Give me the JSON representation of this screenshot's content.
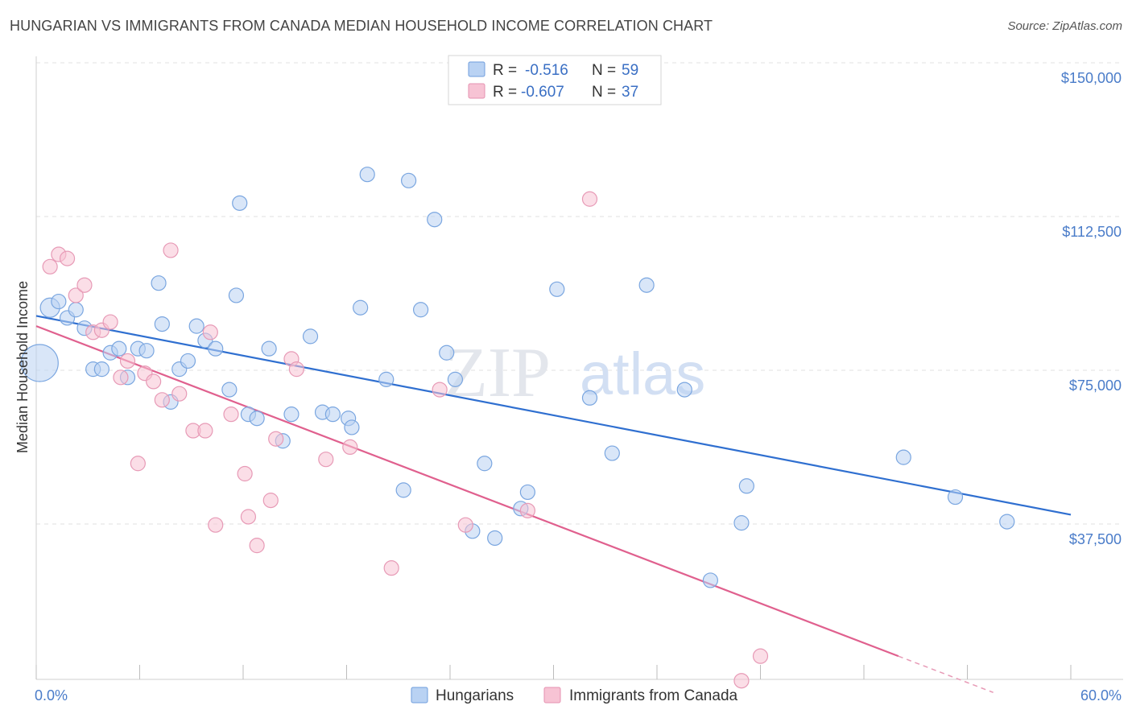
{
  "title": "HUNGARIAN VS IMMIGRANTS FROM CANADA MEDIAN HOUSEHOLD INCOME CORRELATION CHART",
  "source": "Source: ZipAtlas.com",
  "watermark": {
    "zip": "ZIP",
    "atlas": "atlas"
  },
  "colors": {
    "blue": "#4a86d8",
    "blue_fill": "#b9d2f3",
    "pink": "#e0608e",
    "pink_fill": "#f7c3d4",
    "grid": "#dddddd",
    "axis_text": "#4a7cc9"
  },
  "legend_box": {
    "rows": [
      {
        "r_label": "R =",
        "r_value": "-0.516",
        "n_label": "N =",
        "n_value": "59"
      },
      {
        "r_label": "R =",
        "r_value": "-0.607",
        "n_label": "N =",
        "n_value": "37"
      }
    ]
  },
  "chart_data": {
    "type": "scatter",
    "xlabel": "",
    "ylabel": "Median Household Income",
    "x_tick_labels": [
      "0.0%",
      "60.0%"
    ],
    "y_tick_labels": [
      "$150,000",
      "$112,500",
      "$75,000",
      "$37,500"
    ],
    "y_ticks": [
      150000,
      112500,
      75000,
      37500
    ],
    "xlim": [
      0,
      60
    ],
    "ylim": [
      0,
      155000
    ],
    "grid": true,
    "legend_position": "top-center",
    "series": [
      {
        "name": "Hungarians",
        "color": "#4a86d8",
        "trend": {
          "x": [
            0,
            60
          ],
          "y": [
            92000,
            43500
          ]
        },
        "points": [
          [
            0.2,
            80500,
            "big"
          ],
          [
            0.8,
            94000,
            "med"
          ],
          [
            1.3,
            95500
          ],
          [
            1.8,
            91500
          ],
          [
            2.3,
            93500
          ],
          [
            2.8,
            89000
          ],
          [
            3.3,
            79000
          ],
          [
            3.8,
            79000
          ],
          [
            4.3,
            83000
          ],
          [
            4.8,
            84000
          ],
          [
            5.3,
            77000
          ],
          [
            5.9,
            84000
          ],
          [
            6.4,
            83500
          ],
          [
            7.1,
            100000
          ],
          [
            7.3,
            90000
          ],
          [
            7.8,
            71000
          ],
          [
            8.3,
            79000
          ],
          [
            8.8,
            81000
          ],
          [
            9.3,
            89500
          ],
          [
            9.8,
            86000
          ],
          [
            10.4,
            84000
          ],
          [
            11.2,
            74000
          ],
          [
            11.6,
            97000
          ],
          [
            11.8,
            119500
          ],
          [
            12.3,
            68000
          ],
          [
            12.8,
            67000
          ],
          [
            13.5,
            84000
          ],
          [
            14.3,
            61500
          ],
          [
            14.8,
            68000
          ],
          [
            15.9,
            87000
          ],
          [
            16.6,
            68500
          ],
          [
            17.2,
            68000
          ],
          [
            18.1,
            67000
          ],
          [
            18.3,
            64800
          ],
          [
            18.8,
            94000
          ],
          [
            19.2,
            126500
          ],
          [
            20.3,
            76500
          ],
          [
            21.3,
            49500
          ],
          [
            21.6,
            125000
          ],
          [
            22.3,
            93500
          ],
          [
            23.1,
            115500
          ],
          [
            23.8,
            83000
          ],
          [
            24.3,
            76500
          ],
          [
            25.3,
            39500
          ],
          [
            26.0,
            56000
          ],
          [
            26.6,
            37800
          ],
          [
            28.1,
            45000
          ],
          [
            28.5,
            49000
          ],
          [
            30.2,
            98500
          ],
          [
            32.1,
            72000
          ],
          [
            33.4,
            58500
          ],
          [
            35.4,
            99500
          ],
          [
            37.6,
            74000
          ],
          [
            39.1,
            27500
          ],
          [
            40.9,
            41500
          ],
          [
            41.2,
            50500
          ],
          [
            50.3,
            57500
          ],
          [
            53.3,
            47800
          ],
          [
            56.3,
            41800
          ]
        ]
      },
      {
        "name": "Immigrants from Canada",
        "color": "#e0608e",
        "trend": {
          "x": [
            0,
            50
          ],
          "y": [
            89500,
            9000
          ]
        },
        "points": [
          [
            0.8,
            104000
          ],
          [
            1.3,
            107000
          ],
          [
            1.8,
            106000
          ],
          [
            2.3,
            97000
          ],
          [
            2.8,
            99500
          ],
          [
            3.3,
            88000
          ],
          [
            3.8,
            88500
          ],
          [
            4.3,
            90500
          ],
          [
            4.9,
            77000
          ],
          [
            5.3,
            81000
          ],
          [
            5.9,
            56000
          ],
          [
            6.3,
            78000
          ],
          [
            6.8,
            76000
          ],
          [
            7.3,
            71500
          ],
          [
            7.8,
            108000
          ],
          [
            8.3,
            73000
          ],
          [
            9.1,
            64000
          ],
          [
            9.8,
            64000
          ],
          [
            10.1,
            88000
          ],
          [
            10.4,
            41000
          ],
          [
            11.3,
            68000
          ],
          [
            12.1,
            53500
          ],
          [
            12.3,
            43000
          ],
          [
            12.8,
            36000
          ],
          [
            13.6,
            47000
          ],
          [
            13.9,
            62000
          ],
          [
            14.8,
            81500
          ],
          [
            15.1,
            79000
          ],
          [
            16.8,
            57000
          ],
          [
            18.2,
            60000
          ],
          [
            20.6,
            30500
          ],
          [
            23.4,
            74000
          ],
          [
            24.9,
            41000
          ],
          [
            32.1,
            120500
          ],
          [
            40.9,
            3000
          ],
          [
            42.0,
            9000
          ],
          [
            28.5,
            44500
          ]
        ]
      }
    ]
  },
  "bottom_legend": [
    "Hungarians",
    "Immigrants from Canada"
  ]
}
